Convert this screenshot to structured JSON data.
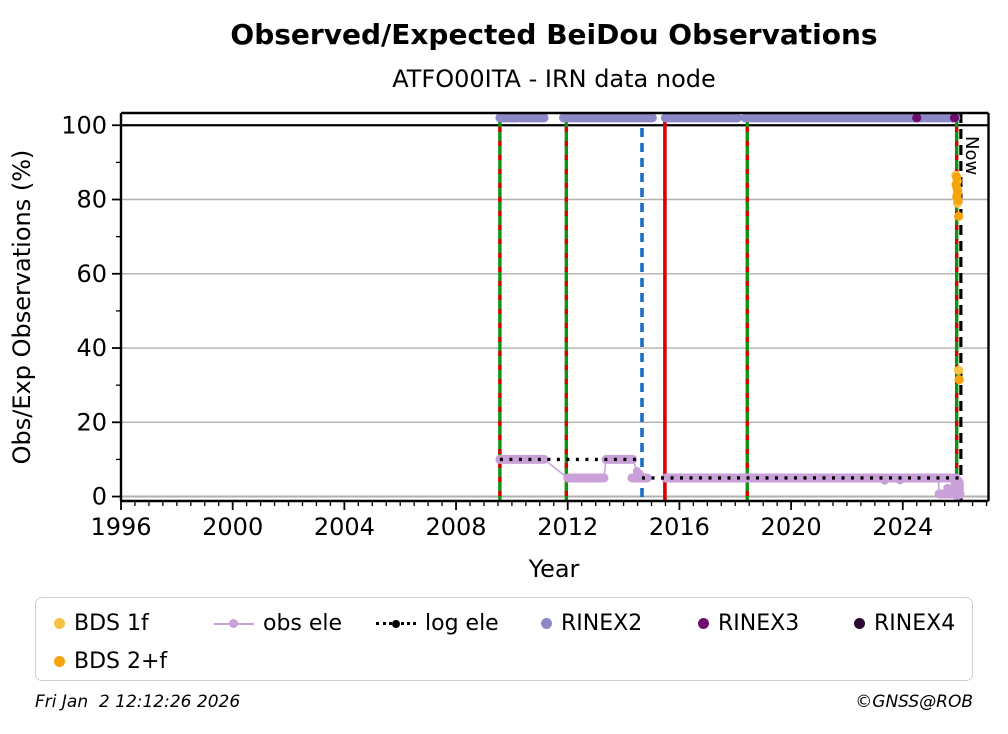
{
  "header": {
    "title": "Observed/Expected BeiDou Observations",
    "subtitle": "ATFO00ITA - IRN data node"
  },
  "footer": {
    "timestamp": "Fri Jan  2 12:12:26 2026",
    "credit": "©GNSS@ROB"
  },
  "legend": {
    "items": [
      {
        "label": "BDS 1f",
        "color": "#f5c242",
        "glyph": "dot"
      },
      {
        "label": "obs ele",
        "color": "#c9a0d8",
        "glyph": "line-dot"
      },
      {
        "label": "log ele",
        "color": "#000000",
        "glyph": "dotted-line-dot"
      },
      {
        "label": "RINEX2",
        "color": "#8d88c8",
        "glyph": "dot"
      },
      {
        "label": "RINEX3",
        "color": "#6e0d6e",
        "glyph": "dot"
      },
      {
        "label": "RINEX4",
        "color": "#2b0a33",
        "glyph": "dot"
      },
      {
        "label": "BDS 2+f",
        "color": "#f7a30a",
        "glyph": "dot"
      }
    ]
  },
  "chart_data": {
    "type": "scatter",
    "title": "Observed/Expected BeiDou Observations",
    "subtitle": "ATFO00ITA - IRN data node",
    "xlabel": "Year",
    "ylabel": "Obs/Exp Observations (%)",
    "xlim": [
      1996,
      2027.07
    ],
    "ylim": [
      -1.2,
      103.3
    ],
    "xticks": [
      1996,
      2000,
      2004,
      2008,
      2012,
      2016,
      2020,
      2024
    ],
    "x_minor_step": 0.5,
    "yticks": [
      0,
      20,
      40,
      60,
      80,
      100
    ],
    "y_minor_step": 10,
    "grid": {
      "y_gray": [
        0,
        20,
        40,
        60,
        80
      ],
      "y_black": [
        100
      ],
      "gray_color": "#b0b0b0"
    },
    "now_label": "Now",
    "event_lines": [
      {
        "x": 2009.57,
        "style": "green-red-dashed",
        "green": "#0f930f",
        "red": "#dd0000"
      },
      {
        "x": 2011.95,
        "style": "green-red-dashed",
        "green": "#0f930f",
        "red": "#dd0000"
      },
      {
        "x": 2014.66,
        "style": "blue-dashed",
        "color": "#1a6fc4"
      },
      {
        "x": 2015.48,
        "style": "red-solid",
        "color": "#dd0000"
      },
      {
        "x": 2018.43,
        "style": "green-red-dashed",
        "green": "#0f930f",
        "red": "#dd0000"
      },
      {
        "x": 2025.93,
        "style": "green-red-dashed",
        "green": "#0f930f",
        "red": "#dd0000"
      },
      {
        "x": 2026.08,
        "style": "black-dashed-now",
        "color": "#000000"
      }
    ],
    "series": [
      {
        "name": "RINEX2",
        "color": "#8d88c8",
        "kind": "run",
        "y": 102,
        "runs": [
          [
            2009.57,
            2010.22
          ],
          [
            2010.32,
            2011.15
          ],
          [
            2011.85,
            2012.96
          ],
          [
            2013.04,
            2015.03
          ],
          [
            2015.5,
            2018.08
          ],
          [
            2018.35,
            2019.66
          ],
          [
            2019.72,
            2023.26
          ],
          [
            2023.34,
            2025.9
          ]
        ]
      },
      {
        "name": "RINEX3",
        "color": "#6e0d6e",
        "kind": "points",
        "points": [
          [
            2024.5,
            102
          ],
          [
            2025.85,
            102
          ]
        ]
      },
      {
        "name": "RINEX4",
        "color": "#2b0a33",
        "kind": "points",
        "points": []
      },
      {
        "name": "obs ele",
        "color": "#c9a0d8",
        "kind": "stepline",
        "thick_runs": [
          [
            2009.57,
            10,
            2011.15,
            10
          ],
          [
            2012.0,
            5,
            2013.3,
            5
          ],
          [
            2013.37,
            10,
            2014.33,
            10
          ],
          [
            2014.3,
            5,
            2014.85,
            5
          ],
          [
            2015.5,
            5,
            2025.9,
            5
          ],
          [
            2025.3,
            0.7,
            2026.05,
            0.7
          ]
        ],
        "connectors": [
          [
            2011.15,
            10,
            2012.0,
            5
          ],
          [
            2013.3,
            5,
            2013.37,
            10
          ],
          [
            2014.33,
            10,
            2014.48,
            6.8
          ],
          [
            2014.48,
            6.8,
            2014.56,
            5
          ],
          [
            2025.28,
            5,
            2025.3,
            0.7
          ],
          [
            2025.98,
            0.7,
            2026.0,
            4.3
          ]
        ],
        "blob": [
          2025.95,
          0.8,
          2025.95,
          3.6
        ],
        "extra_points": [
          [
            2014.48,
            6.8
          ],
          [
            2014.56,
            6.2
          ],
          [
            2023.35,
            4.3
          ],
          [
            2023.9,
            4.4
          ],
          [
            2025.6,
            2.3
          ],
          [
            2026.0,
            4.3
          ]
        ]
      },
      {
        "name": "log ele",
        "color": "#000000",
        "kind": "dotted",
        "runs": [
          [
            2009.57,
            10,
            2014.66,
            10
          ],
          [
            2014.66,
            5,
            2026.05,
            5
          ]
        ]
      },
      {
        "name": "BDS 1f",
        "color": "#f5c242",
        "kind": "points",
        "points": [
          [
            2025.9,
            86.5
          ],
          [
            2025.95,
            85
          ],
          [
            2025.92,
            83.5
          ],
          [
            2025.97,
            82
          ],
          [
            2025.93,
            80.5
          ],
          [
            2025.96,
            79
          ],
          [
            2026.0,
            34
          ]
        ]
      },
      {
        "name": "BDS 2+f",
        "color": "#f7a30a",
        "kind": "points",
        "points": [
          [
            2025.93,
            86
          ],
          [
            2025.91,
            84
          ],
          [
            2025.96,
            82.5
          ],
          [
            2025.94,
            81
          ],
          [
            2025.98,
            79.8
          ],
          [
            2026.0,
            75.5
          ],
          [
            2026.02,
            31.5
          ]
        ]
      }
    ],
    "plot_note": "vertical event lines: green/red dashed at 2009.57, 2011.95, 2018.43, 2025.93; blue dashed at 2014.66; red solid at 2015.48; black dashed Now line at 2026.08"
  }
}
